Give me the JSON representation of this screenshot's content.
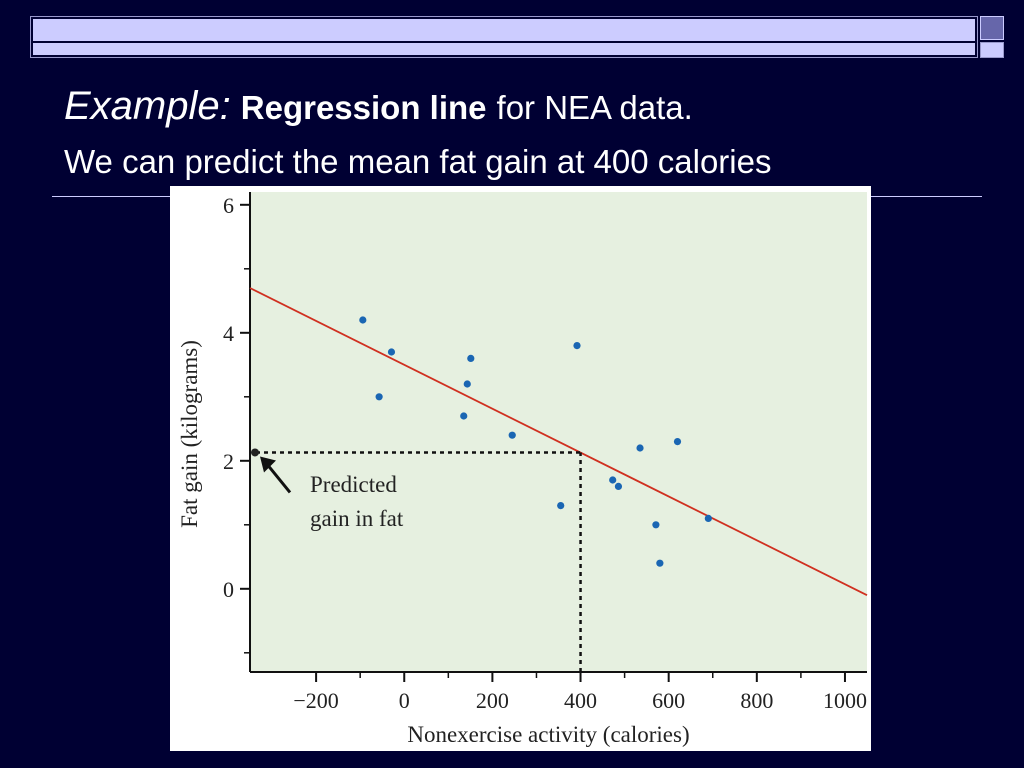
{
  "slide": {
    "title_italic": "Example:",
    "title_bold": "Regression line",
    "title_rest": "for NEA data.",
    "subtitle": "We can predict the mean fat gain at 400 calories"
  },
  "colors": {
    "background": "#000033",
    "plot_background": "#e6f0e0",
    "points": "#1a66b3",
    "regression_line": "#d03020"
  },
  "chart_data": {
    "type": "scatter",
    "xlabel": "Nonexercise activity (calories)",
    "ylabel": "Fat gain (kilograms)",
    "xlim": [
      -350,
      1050
    ],
    "ylim": [
      -1.3,
      6.2
    ],
    "xticks": [
      -200,
      0,
      200,
      400,
      600,
      800,
      1000
    ],
    "xtick_labels": [
      "−200",
      "0",
      "200",
      "400",
      "600",
      "800",
      "1000"
    ],
    "yticks": [
      0,
      2,
      4,
      6
    ],
    "ytick_labels": [
      "0",
      "2",
      "4",
      "6"
    ],
    "grid": false,
    "points": [
      {
        "x": -94,
        "y": 4.2
      },
      {
        "x": -57,
        "y": 3.0
      },
      {
        "x": -29,
        "y": 3.7
      },
      {
        "x": 135,
        "y": 2.7
      },
      {
        "x": 143,
        "y": 3.2
      },
      {
        "x": 151,
        "y": 3.6
      },
      {
        "x": 245,
        "y": 2.4
      },
      {
        "x": 355,
        "y": 1.3
      },
      {
        "x": 392,
        "y": 3.8
      },
      {
        "x": 473,
        "y": 1.7
      },
      {
        "x": 486,
        "y": 1.6
      },
      {
        "x": 535,
        "y": 2.2
      },
      {
        "x": 571,
        "y": 1.0
      },
      {
        "x": 580,
        "y": 0.4
      },
      {
        "x": 620,
        "y": 2.3
      },
      {
        "x": 690,
        "y": 1.1
      }
    ],
    "regression_line": {
      "x": [
        -350,
        1050
      ],
      "y": [
        4.7,
        -0.1
      ]
    },
    "prediction": {
      "x": 400,
      "y": 2.13
    },
    "annotation": [
      "Predicted",
      "gain in fat"
    ]
  }
}
